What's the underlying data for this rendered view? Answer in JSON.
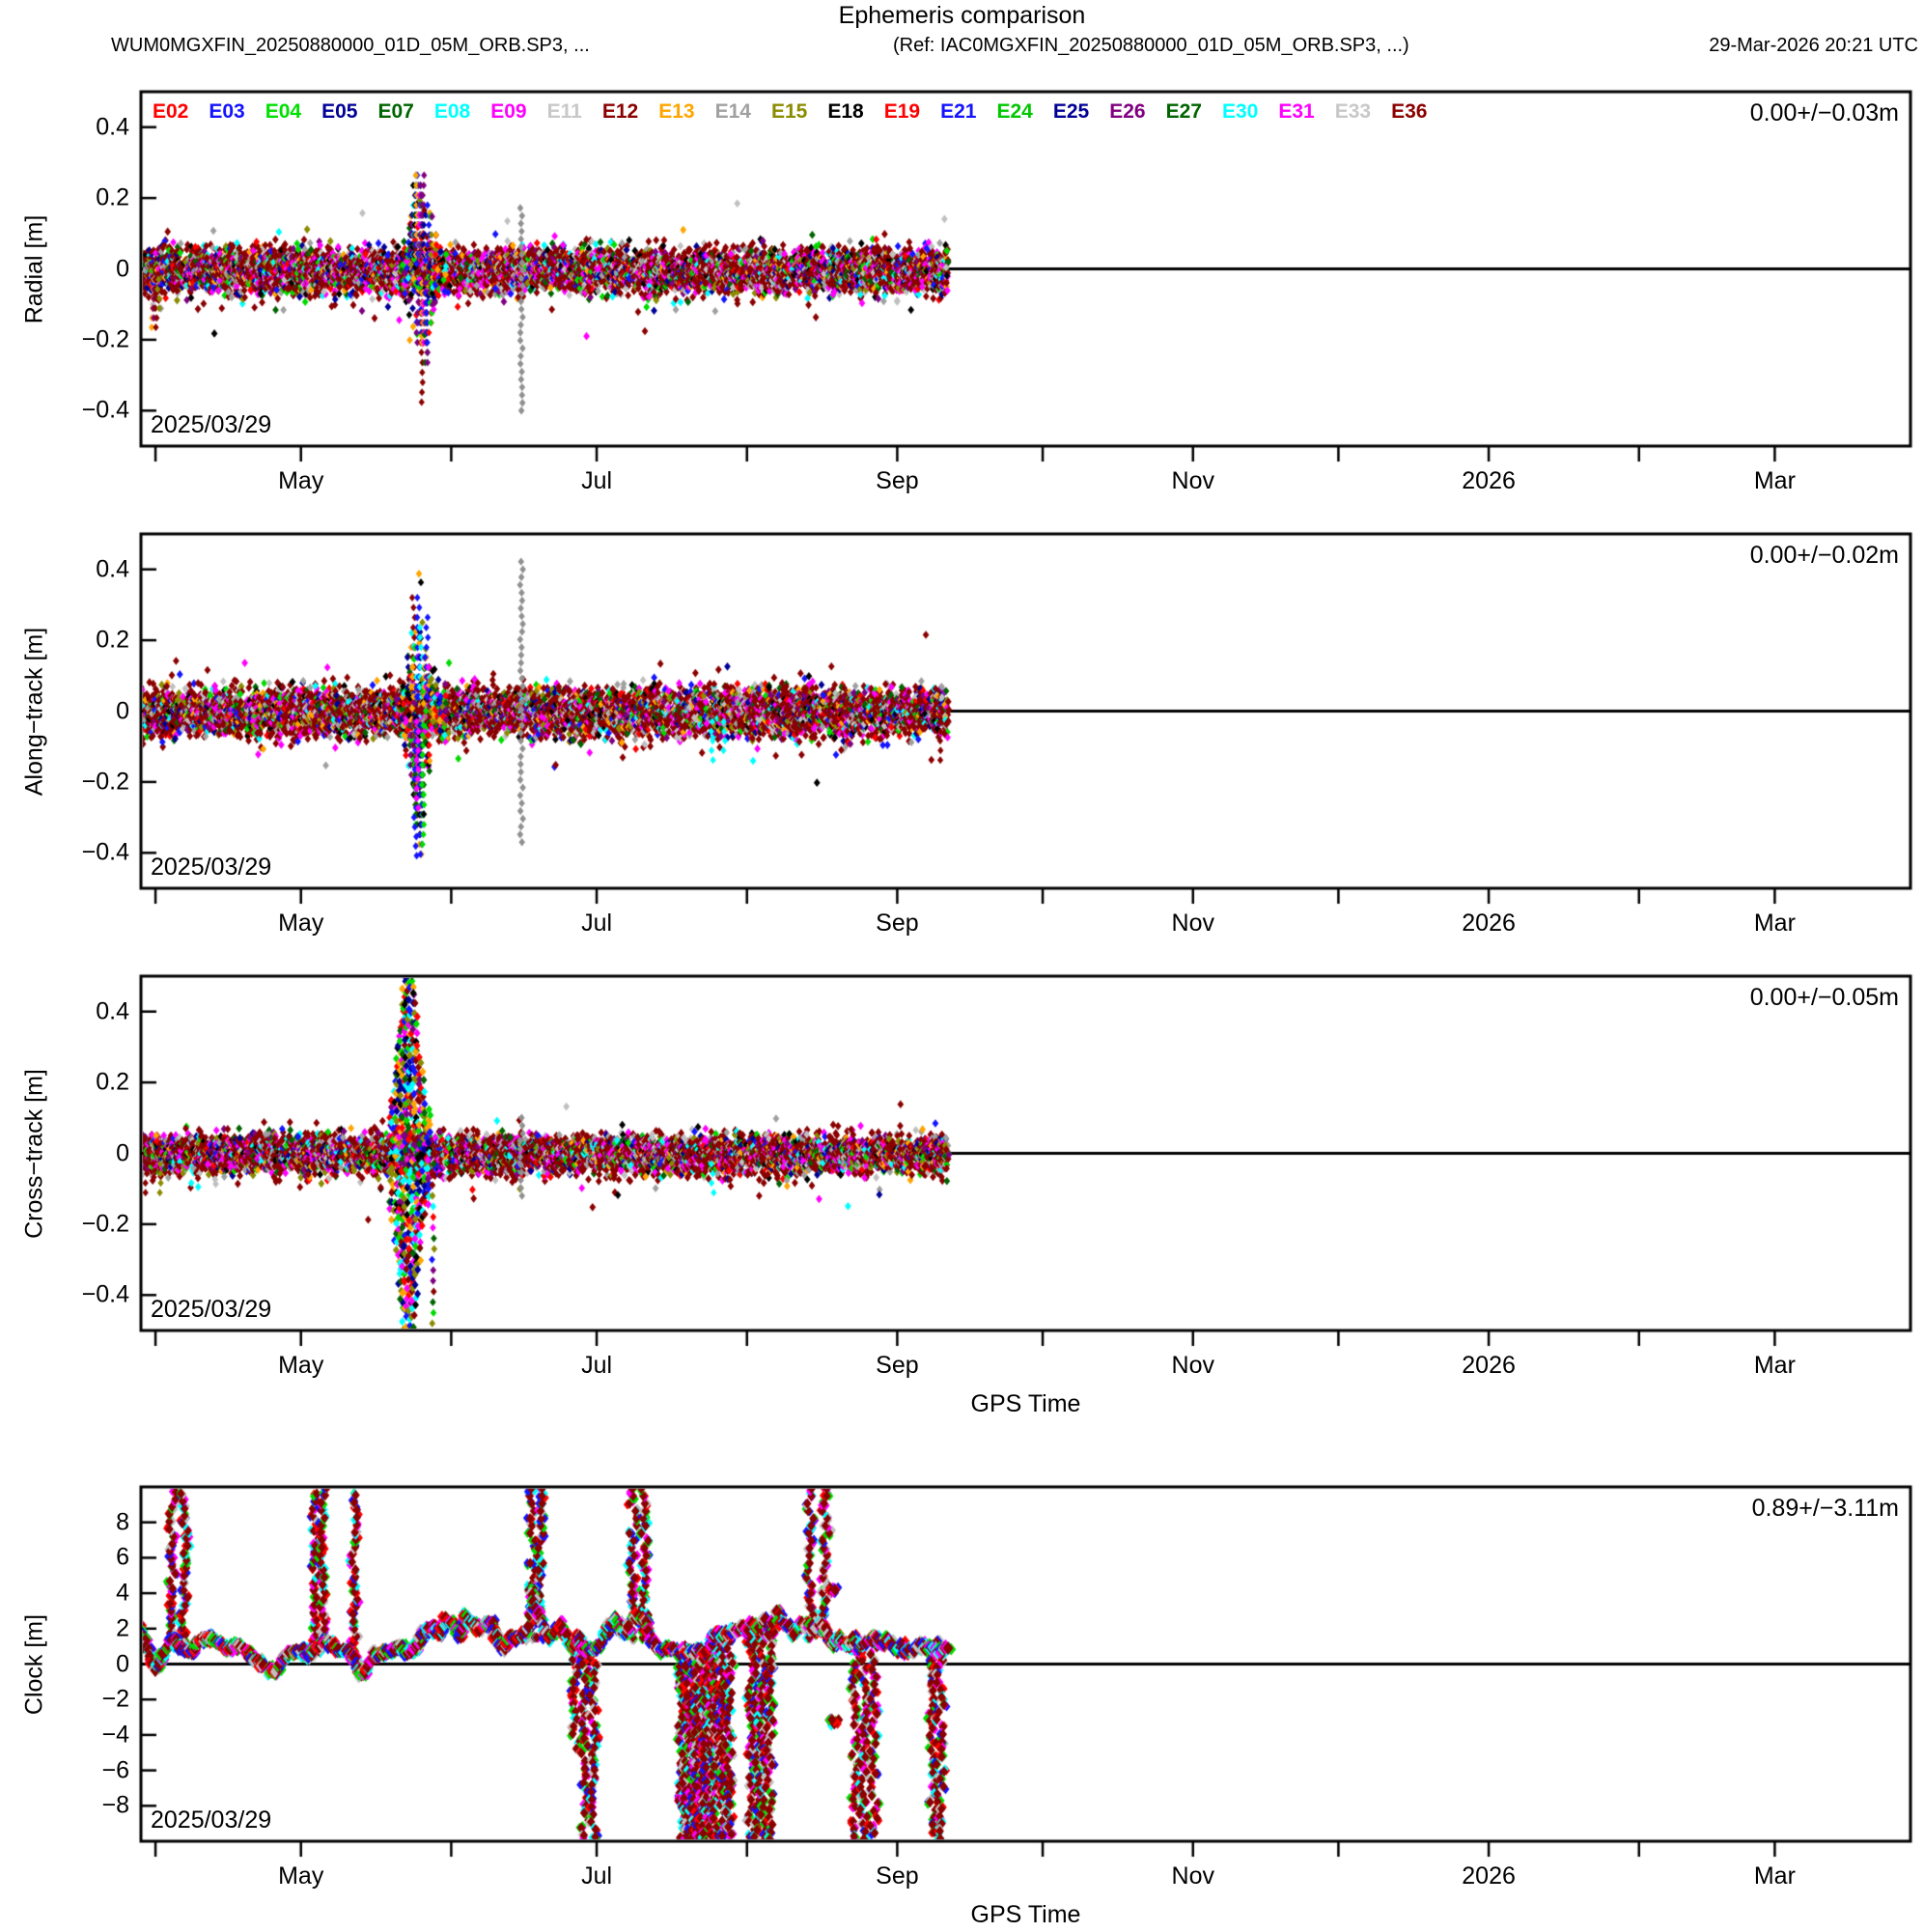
{
  "title": "Ephemeris comparison",
  "header": {
    "file_label": "WUM0MGXFIN_20250880000_01D_05M_ORB.SP3, ...",
    "ref_label": "(Ref: IAC0MGXFIN_20250880000_01D_05M_ORB.SP3, ...)",
    "generated": "29-Mar-2026 20:21 UTC"
  },
  "legend": [
    {
      "id": "E02",
      "color": "#FF0000"
    },
    {
      "id": "E03",
      "color": "#1414FF"
    },
    {
      "id": "E04",
      "color": "#00E000"
    },
    {
      "id": "E05",
      "color": "#000096"
    },
    {
      "id": "E07",
      "color": "#006400"
    },
    {
      "id": "E08",
      "color": "#00FFFF"
    },
    {
      "id": "E09",
      "color": "#FF00FF"
    },
    {
      "id": "E11",
      "color": "#C8C8C8"
    },
    {
      "id": "E12",
      "color": "#8B0000"
    },
    {
      "id": "E13",
      "color": "#FFA500"
    },
    {
      "id": "E14",
      "color": "#A0A0A0"
    },
    {
      "id": "E15",
      "color": "#8B8B00"
    },
    {
      "id": "E18",
      "color": "#000000"
    },
    {
      "id": "E19",
      "color": "#FF0000"
    },
    {
      "id": "E21",
      "color": "#1414FF"
    },
    {
      "id": "E24",
      "color": "#00C800"
    },
    {
      "id": "E25",
      "color": "#000096"
    },
    {
      "id": "E26",
      "color": "#800080"
    },
    {
      "id": "E27",
      "color": "#006400"
    },
    {
      "id": "E30",
      "color": "#00FFFF"
    },
    {
      "id": "E31",
      "color": "#FF00FF"
    },
    {
      "id": "E33",
      "color": "#C8C8C8"
    },
    {
      "id": "E36",
      "color": "#8B0000"
    }
  ],
  "x_axis": {
    "start_date": "2025/03/29",
    "span_days": 365,
    "xlabel": "GPS Time",
    "ticks": [
      {
        "day": 3,
        "label": ""
      },
      {
        "day": 33,
        "label": "May"
      },
      {
        "day": 64,
        "label": ""
      },
      {
        "day": 94,
        "label": "Jul"
      },
      {
        "day": 125,
        "label": ""
      },
      {
        "day": 156,
        "label": "Sep"
      },
      {
        "day": 186,
        "label": ""
      },
      {
        "day": 217,
        "label": "Nov"
      },
      {
        "day": 247,
        "label": ""
      },
      {
        "day": 278,
        "label": "2026"
      },
      {
        "day": 309,
        "label": ""
      },
      {
        "day": 337,
        "label": "Mar"
      }
    ]
  },
  "chart_data": [
    {
      "type": "scatter",
      "name": "radial",
      "ylabel": "Radial [m]",
      "ylim": [
        -0.5,
        0.5
      ],
      "yticks": [
        0.4,
        0.2,
        0.0,
        -0.2,
        -0.4
      ],
      "stat": "0.00+/−0.03m",
      "date_label": "2025/03/29",
      "data_span_days": 166,
      "baseline_sigma_m": 0.03,
      "baseline_bias_m": -0.005,
      "burst": {
        "start": 53.5,
        "end": 63.0,
        "peak_day": 57.9,
        "amp_m": 0.11,
        "max_abs_m": 0.4
      },
      "gray_column": {
        "day": 78.5,
        "range_m": [
          -0.4,
          0.18
        ]
      },
      "strings": [
        [
          2.4,
          -0.17,
          "#FFA500"
        ],
        [
          2.8,
          -0.15,
          "#800080"
        ],
        [
          3.2,
          -0.18,
          "#8B0000"
        ],
        [
          3.6,
          -0.12,
          "#8B8B00"
        ]
      ]
    },
    {
      "type": "scatter",
      "name": "along_track",
      "ylabel": "Along−track [m]",
      "ylim": [
        -0.5,
        0.5
      ],
      "yticks": [
        0.4,
        0.2,
        0.0,
        -0.2,
        -0.4
      ],
      "stat": "0.00+/−0.02m",
      "date_label": "2025/03/29",
      "data_span_days": 166,
      "baseline_sigma_m": 0.033,
      "baseline_bias_m": -0.003,
      "burst": {
        "start": 53.5,
        "end": 63.0,
        "peak_day": 57.6,
        "amp_m": 0.13,
        "max_abs_m": 0.43
      },
      "gray_column": {
        "day": 78.5,
        "range_m": [
          -0.37,
          0.43
        ]
      },
      "strings": [
        [
          56.6,
          -0.43,
          "#1414FF"
        ],
        [
          57.0,
          -0.3,
          "#FF00FF"
        ],
        [
          117.9,
          -0.16,
          "#00FFFF"
        ],
        [
          120.3,
          -0.13,
          "#00FFFF"
        ],
        [
          164.9,
          -0.14,
          "#8B0000"
        ]
      ]
    },
    {
      "type": "scatter",
      "name": "cross_track",
      "ylabel": "Cross−track [m]",
      "ylim": [
        -0.5,
        0.5
      ],
      "yticks": [
        0.4,
        0.2,
        0.0,
        -0.2,
        -0.4
      ],
      "stat": "0.00+/−0.05m",
      "date_label": "2025/03/29",
      "xlabel": "GPS Time",
      "data_span_days": 166,
      "baseline_sigma_m": 0.026,
      "baseline_bias_m": -0.003,
      "column_burst": {
        "start": 51.6,
        "end": 59.5,
        "peak_day": 55.2,
        "max_abs_m": 0.52,
        "clipped": true
      },
      "down_column": {
        "day": 60.2,
        "to_m": -0.52
      },
      "gray_column": {
        "day": 78.5,
        "range_m": [
          -0.12,
          0.12
        ]
      },
      "strings": [
        [
          1.2,
          -0.12,
          "#8B0000"
        ],
        [
          4.1,
          -0.12,
          "#8B8B00"
        ],
        [
          117.9,
          -0.13,
          "#00FFFF"
        ]
      ]
    },
    {
      "type": "scatter",
      "name": "clock",
      "ylabel": "Clock [m]",
      "ylim": [
        -10,
        10
      ],
      "yticks": [
        8,
        6,
        4,
        2,
        0,
        -2,
        -4,
        -6,
        -8
      ],
      "stat": "0.89+/−3.11m",
      "date_label": "2025/03/29",
      "xlabel": "GPS Time",
      "data_span_days": 166,
      "trend_points": [
        [
          0,
          2.2
        ],
        [
          2,
          0.3
        ],
        [
          3,
          -0.2
        ],
        [
          5,
          0.8
        ],
        [
          6,
          1.4
        ],
        [
          10,
          0.6
        ],
        [
          12,
          1.3
        ],
        [
          14,
          1.5
        ],
        [
          16,
          1.2
        ],
        [
          18,
          0.9
        ],
        [
          20,
          1.0
        ],
        [
          22,
          0.6
        ],
        [
          24,
          0.2
        ],
        [
          26,
          -0.3
        ],
        [
          28,
          -0.5
        ],
        [
          29,
          0.2
        ],
        [
          31,
          0.7
        ],
        [
          33,
          0.9
        ],
        [
          34,
          0.5
        ],
        [
          36,
          0.8
        ],
        [
          38,
          1.2
        ],
        [
          40,
          1.0
        ],
        [
          42,
          0.8
        ],
        [
          44,
          0.3
        ],
        [
          45,
          -0.4
        ],
        [
          46,
          -0.6
        ],
        [
          48,
          0.5
        ],
        [
          50,
          0.6
        ],
        [
          52,
          0.8
        ],
        [
          54,
          0.9
        ],
        [
          55,
          0.5
        ],
        [
          57,
          1.1
        ],
        [
          58,
          1.6
        ],
        [
          60,
          2.1
        ],
        [
          62,
          1.7
        ],
        [
          63,
          2.6
        ],
        [
          64,
          2.2
        ],
        [
          66,
          1.5
        ],
        [
          67,
          2.8
        ],
        [
          68,
          2.3
        ],
        [
          70,
          1.9
        ],
        [
          72,
          2.4
        ],
        [
          74,
          1.2
        ],
        [
          75,
          0.9
        ],
        [
          76,
          1.6
        ],
        [
          78,
          1.4
        ],
        [
          80,
          2.0
        ],
        [
          81,
          3.8
        ],
        [
          82,
          2.9
        ],
        [
          83,
          2.2
        ],
        [
          84,
          1.5
        ],
        [
          86,
          2.2
        ],
        [
          88,
          1.4
        ],
        [
          89,
          0.8
        ],
        [
          90,
          1.7
        ],
        [
          91,
          0.9
        ],
        [
          93,
          0.7
        ],
        [
          95,
          1.2
        ],
        [
          97,
          2.3
        ],
        [
          98,
          2.5
        ],
        [
          99,
          2.1
        ],
        [
          100,
          1.6
        ],
        [
          101.5,
          2.5
        ],
        [
          103,
          2.8
        ],
        [
          104.5,
          2.2
        ],
        [
          106,
          1.0
        ],
        [
          107,
          0.6
        ],
        [
          108,
          1.0
        ],
        [
          110,
          0.8
        ],
        [
          111,
          0.5
        ],
        [
          112,
          0.9
        ],
        [
          113,
          0.6
        ],
        [
          115,
          0.8
        ],
        [
          116,
          0.4
        ],
        [
          118,
          1.3
        ],
        [
          119,
          1.9
        ],
        [
          120,
          1.6
        ],
        [
          122,
          1.8
        ],
        [
          124,
          2.1
        ],
        [
          125,
          1.7
        ],
        [
          126,
          2.2
        ],
        [
          128,
          1.9
        ],
        [
          129,
          2.4
        ],
        [
          130,
          1.5
        ],
        [
          131,
          3.2
        ],
        [
          132,
          2.4
        ],
        [
          134,
          2.1
        ],
        [
          135,
          1.6
        ],
        [
          136,
          2.3
        ],
        [
          138,
          2.2
        ],
        [
          139,
          1.8
        ],
        [
          140,
          2.4
        ],
        [
          142,
          1.4
        ],
        [
          143,
          1.1
        ],
        [
          144,
          1.5
        ],
        [
          146,
          1.0
        ],
        [
          147,
          1.4
        ],
        [
          148,
          0.9
        ],
        [
          150,
          1.2
        ],
        [
          152,
          1.5
        ],
        [
          153,
          1.0
        ],
        [
          154,
          1.4
        ],
        [
          156,
          0.7
        ],
        [
          157,
          1.1
        ],
        [
          158,
          0.6
        ],
        [
          160,
          0.9
        ],
        [
          161,
          1.3
        ],
        [
          162,
          0.8
        ],
        [
          164,
          1.1
        ],
        [
          165,
          0.6
        ],
        [
          166,
          1.0
        ]
      ],
      "up_spike_days": [
        6.4,
        9.0,
        36.0,
        37.6,
        44.0,
        81.0,
        82.4,
        101.5,
        104.0,
        138.0,
        141.3
      ],
      "down_spikes": [
        {
          "day": 89.8,
          "to": -5.2
        },
        {
          "day": 91.6,
          "to": -9.9
        },
        {
          "day": 93.2,
          "to": -9.9
        },
        {
          "day": 111.5,
          "to": -9.9
        },
        {
          "day": 112.3,
          "to": -9.9
        },
        {
          "day": 113.1,
          "to": -9.9
        },
        {
          "day": 113.9,
          "to": -9.9
        },
        {
          "day": 114.7,
          "to": -9.9
        },
        {
          "day": 115.5,
          "to": -9.9
        },
        {
          "day": 116.3,
          "to": -9.9
        },
        {
          "day": 117.1,
          "to": -9.9
        },
        {
          "day": 118.0,
          "to": -9.9
        },
        {
          "day": 118.8,
          "to": -9.9
        },
        {
          "day": 119.6,
          "to": -9.9
        },
        {
          "day": 120.5,
          "to": -9.9
        },
        {
          "day": 121.3,
          "to": -9.9
        },
        {
          "day": 125.8,
          "to": -9.9
        },
        {
          "day": 127.1,
          "to": -9.9
        },
        {
          "day": 128.3,
          "to": -9.9
        },
        {
          "day": 129.6,
          "to": -9.9
        },
        {
          "day": 147.4,
          "to": -9.9
        },
        {
          "day": 149.0,
          "to": -9.9
        },
        {
          "day": 151.2,
          "to": -9.9
        },
        {
          "day": 163.4,
          "to": -9.9
        },
        {
          "day": 164.9,
          "to": -9.9
        }
      ],
      "blobs": [
        [
          80.9,
          4.3
        ],
        [
          81.4,
          3.9
        ],
        [
          142.7,
          4.2
        ],
        [
          143.1,
          -3.2
        ]
      ]
    }
  ],
  "gap_days": [
    8.4,
    20.8,
    30.1,
    41.3,
    46.8,
    63.8,
    70.0,
    79.5,
    87.8,
    95.1,
    100.9,
    109.1,
    116.8,
    124.1,
    133.8,
    141.1,
    149.8,
    155.1,
    158.9,
    162.1
  ]
}
